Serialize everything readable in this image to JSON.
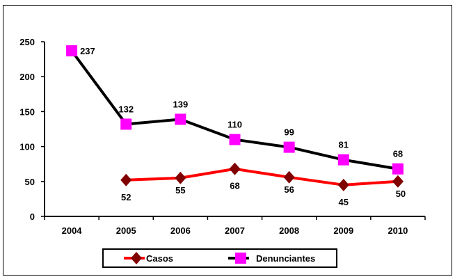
{
  "chart_data": {
    "type": "line",
    "title": "",
    "xlabel": "",
    "ylabel": "",
    "categories": [
      "2004",
      "2005",
      "2006",
      "2007",
      "2008",
      "2009",
      "2010"
    ],
    "ylim": [
      0,
      250
    ],
    "yticks": [
      "0",
      "50",
      "100",
      "150",
      "200",
      "250"
    ],
    "grid": false,
    "legend": "bottom",
    "series": [
      {
        "name": "Casos",
        "color": "#ff0000",
        "marker": "diamond",
        "marker_color": "#800000",
        "values": [
          null,
          52,
          55,
          68,
          56,
          45,
          50
        ],
        "labels": [
          "",
          "52",
          "55",
          "68",
          "56",
          "45",
          "50"
        ]
      },
      {
        "name": "Denunciantes",
        "color": "#000000",
        "marker": "square",
        "marker_color": "#ff00ff",
        "values": [
          237,
          132,
          139,
          110,
          99,
          81,
          68
        ],
        "labels": [
          "237",
          "132",
          "139",
          "110",
          "99",
          "81",
          "68"
        ]
      }
    ]
  }
}
